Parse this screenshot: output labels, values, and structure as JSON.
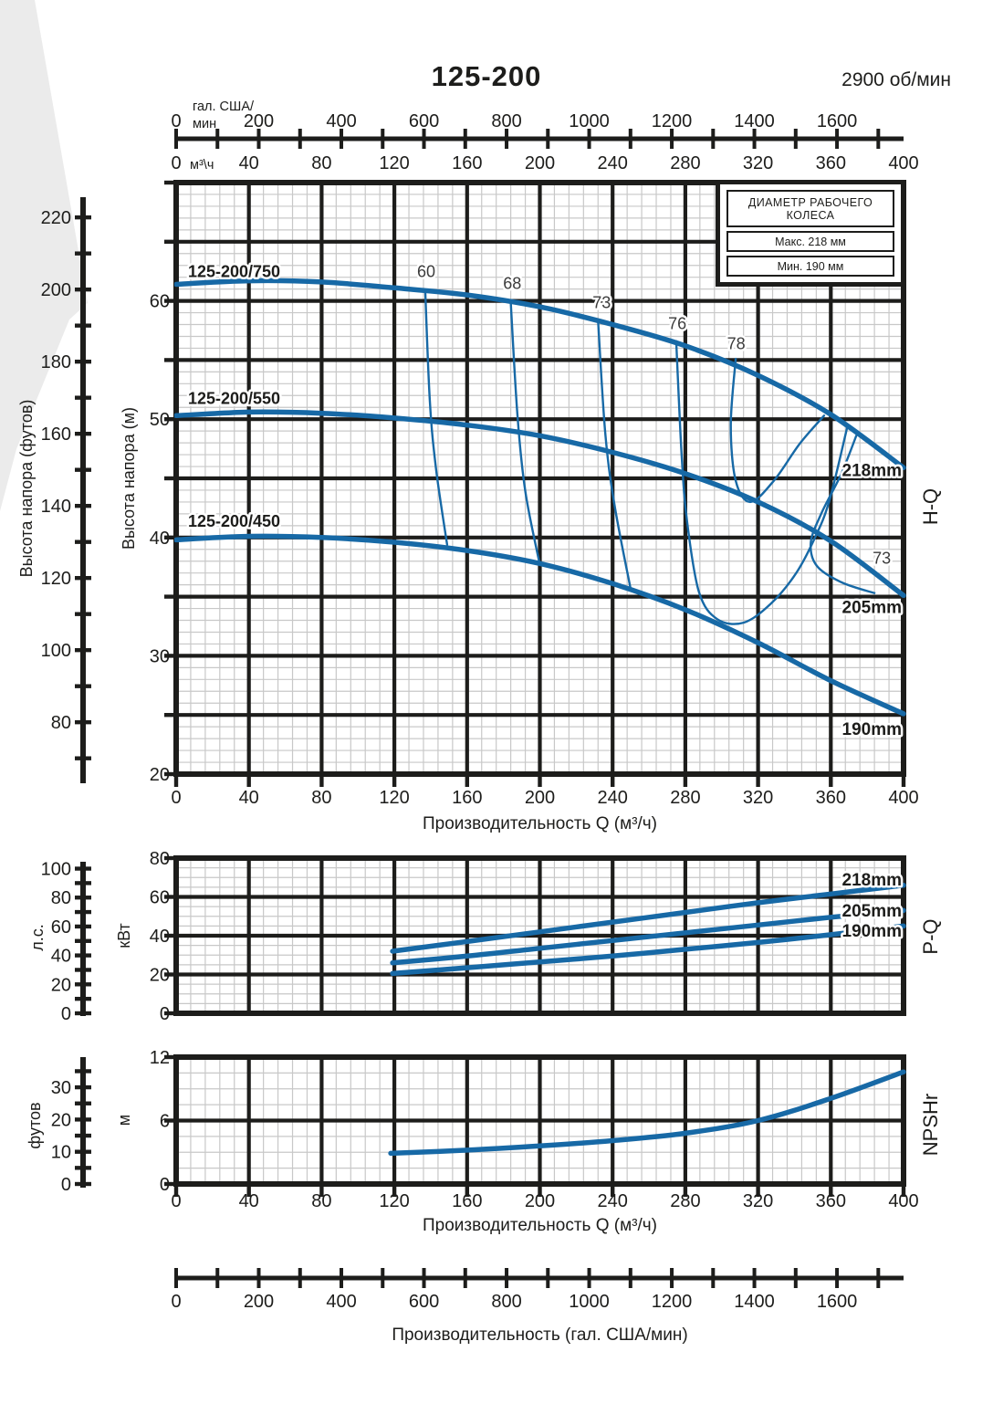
{
  "page": {
    "title": "125-200",
    "rpm": "2900 об/мин"
  },
  "legend": {
    "header": "ДИАМЕТР РАБОЧЕГО КОЛЕСА",
    "max_row": "Макс. 218 мм",
    "min_row": "Мин. 190 мм"
  },
  "chart_data": {
    "type": "line",
    "title": "125-200",
    "subtitle": "2900 об/мин",
    "colors": {
      "curve": "#1769a6",
      "grid_major": "#1d1d1b",
      "grid_minor": "#c8c8c8",
      "text": "#1d1d1b",
      "eff_text": "#3c3c3c",
      "corner": "#ebebeb"
    },
    "flow_axis": {
      "title": "Производительность Q (м³/ч)",
      "unit": "м³\\ч",
      "min": 0,
      "max": 400,
      "major": 40,
      "minor": 8,
      "labels": [
        0,
        40,
        80,
        120,
        160,
        200,
        240,
        280,
        320,
        360,
        400
      ]
    },
    "gpm_axis": {
      "title": "Производительность (гал. США/мин)",
      "unit_line1": "гал. США/",
      "unit_line2": "мин",
      "labels": [
        0,
        200,
        400,
        600,
        800,
        1000,
        1200,
        1400,
        1600
      ],
      "tick_step": 100,
      "tick_max": 1700,
      "gpm_per_m3h": 4.4029
    },
    "hq": {
      "side_label": "H-Q",
      "y_axis": {
        "title": "Высота напора (м)",
        "min": 20,
        "max": 70,
        "major": 5,
        "minor": 1,
        "labels": [
          20,
          30,
          40,
          50,
          60
        ]
      },
      "y_outer": {
        "title": "Высота напора (футов)",
        "labels": [
          80,
          100,
          120,
          140,
          160,
          180,
          200,
          220
        ],
        "tick_step": 10,
        "tick_min": 70,
        "tick_max": 220,
        "to_inner": 0.3048
      },
      "curves": [
        {
          "id": "218mm",
          "designation": "125-200/750",
          "label_xy": [
            6.5,
            62.0
          ],
          "end_label": "218mm",
          "end_label_xy": [
            399,
            45.2
          ],
          "points": [
            [
              0,
              61.4
            ],
            [
              40,
              61.7
            ],
            [
              80,
              61.6
            ],
            [
              120,
              61.1
            ],
            [
              160,
              60.5
            ],
            [
              200,
              59.5
            ],
            [
              240,
              58.0
            ],
            [
              280,
              56.2
            ],
            [
              320,
              53.7
            ],
            [
              360,
              50.4
            ],
            [
              400,
              45.9
            ]
          ]
        },
        {
          "id": "205mm",
          "designation": "125-200/550",
          "label_xy": [
            6.5,
            51.3
          ],
          "end_label": "205mm",
          "end_label_xy": [
            399,
            33.6
          ],
          "points": [
            [
              0,
              50.3
            ],
            [
              40,
              50.6
            ],
            [
              80,
              50.5
            ],
            [
              120,
              50.1
            ],
            [
              160,
              49.5
            ],
            [
              200,
              48.6
            ],
            [
              240,
              47.2
            ],
            [
              280,
              45.4
            ],
            [
              320,
              43.0
            ],
            [
              360,
              39.7
            ],
            [
              400,
              35.1
            ]
          ]
        },
        {
          "id": "190mm",
          "designation": "125-200/450",
          "label_xy": [
            6.5,
            40.9
          ],
          "end_label": "190mm",
          "end_label_xy": [
            399,
            23.3
          ],
          "points": [
            [
              0,
              39.8
            ],
            [
              40,
              40.1
            ],
            [
              80,
              40.0
            ],
            [
              120,
              39.6
            ],
            [
              160,
              38.9
            ],
            [
              200,
              37.8
            ],
            [
              240,
              36.1
            ],
            [
              280,
              33.9
            ],
            [
              320,
              31.1
            ],
            [
              360,
              27.9
            ],
            [
              400,
              25.1
            ]
          ]
        }
      ],
      "efficiency": [
        {
          "label": "60",
          "label_xy": [
            137.5,
            62.0
          ],
          "points": [
            [
              137,
              60.7
            ],
            [
              139.5,
              51.5
            ],
            [
              143,
              45.7
            ],
            [
              149,
              39.4
            ]
          ]
        },
        {
          "label": "68",
          "label_xy": [
            184.8,
            61.0
          ],
          "points": [
            [
              184,
              59.9
            ],
            [
              187.7,
              50.3
            ],
            [
              192,
              43.9
            ],
            [
              200,
              37.7
            ]
          ]
        },
        {
          "label": "73",
          "label_xy": [
            234,
            59.4
          ],
          "points": [
            [
              232,
              58.3
            ],
            [
              236,
              48.8
            ],
            [
              241,
              42.8
            ],
            [
              250,
              35.6
            ]
          ]
        },
        {
          "label": "76",
          "label_xy": [
            275.6,
            57.6
          ],
          "points": [
            [
              275,
              56.6
            ],
            [
              278,
              46.9
            ],
            [
              281,
              41.3
            ],
            [
              287.5,
              35.4
            ],
            [
              297.5,
              33.1
            ],
            [
              312,
              32.8
            ],
            [
              327,
              34.4
            ],
            [
              341,
              37.0
            ],
            [
              351,
              39.9
            ],
            [
              359,
              43.0
            ],
            [
              369,
              49.3
            ]
          ]
        },
        {
          "label": "78",
          "label_xy": [
            308,
            55.9
          ],
          "points": [
            [
              307.7,
              55.1
            ],
            [
              305,
              49.5
            ],
            [
              307.7,
              44.8
            ],
            [
              315.7,
              43.0
            ],
            [
              328.7,
              44.8
            ],
            [
              342.8,
              47.9
            ],
            [
              356.3,
              50.3
            ]
          ]
        },
        {
          "label": "73",
          "label_xy": [
            388,
            37.8
          ],
          "points": [
            [
              374,
              48.6
            ],
            [
              365.5,
              45.3
            ],
            [
              355,
              42.1
            ],
            [
              349,
              39.6
            ],
            [
              352.3,
              37.6
            ],
            [
              366,
              36.2
            ],
            [
              384,
              35.3
            ]
          ]
        }
      ]
    },
    "pq": {
      "side_label": "P-Q",
      "y_axis": {
        "title": "кВт",
        "min": 0,
        "max": 80,
        "major": 20,
        "minor": 5,
        "labels": [
          0,
          20,
          40,
          60,
          80
        ]
      },
      "y_outer": {
        "title": "л.с.",
        "labels": [
          0,
          20,
          40,
          60,
          80,
          100
        ],
        "tick_step": 10,
        "tick_min": 0,
        "tick_max": 100,
        "to_inner": 0.7457
      },
      "curves": [
        {
          "id": "218mm",
          "end_label": "218mm",
          "end_label_xy": [
            399,
            66
          ],
          "points": [
            [
              119,
              32
            ],
            [
              160,
              37
            ],
            [
              200,
              42
            ],
            [
              240,
              47
            ],
            [
              280,
              52
            ],
            [
              320,
              57
            ],
            [
              360,
              61.5
            ],
            [
              400,
              66
            ]
          ]
        },
        {
          "id": "205mm",
          "end_label": "205mm",
          "end_label_xy": [
            399,
            50
          ],
          "points": [
            [
              119,
              26
            ],
            [
              160,
              29.5
            ],
            [
              200,
              33.5
            ],
            [
              240,
              37.5
            ],
            [
              280,
              41.5
            ],
            [
              320,
              45.5
            ],
            [
              360,
              49.5
            ],
            [
              400,
              53
            ]
          ]
        },
        {
          "id": "190mm",
          "end_label": "190mm",
          "end_label_xy": [
            399,
            39.5
          ],
          "points": [
            [
              119,
              20.5
            ],
            [
              160,
              23.5
            ],
            [
              200,
              26.5
            ],
            [
              240,
              29.5
            ],
            [
              280,
              33
            ],
            [
              320,
              36.5
            ],
            [
              360,
              40.5
            ],
            [
              400,
              45
            ]
          ]
        }
      ]
    },
    "npsh": {
      "side_label": "NPSHr",
      "y_axis": {
        "title": "м",
        "min": 0,
        "max": 12,
        "major": 6,
        "minor": 1.5,
        "labels": [
          0,
          6,
          12
        ]
      },
      "y_outer": {
        "title": "футов",
        "labels": [
          0,
          10,
          20,
          30
        ],
        "tick_step": 5,
        "tick_min": 0,
        "tick_max": 35,
        "to_inner": 0.3048
      },
      "curves": [
        {
          "id": "npshr",
          "points": [
            [
              118,
              2.9
            ],
            [
              160,
              3.2
            ],
            [
              200,
              3.6
            ],
            [
              240,
              4.1
            ],
            [
              280,
              4.8
            ],
            [
              320,
              6.0
            ],
            [
              360,
              8.1
            ],
            [
              400,
              10.6
            ]
          ]
        }
      ]
    }
  }
}
